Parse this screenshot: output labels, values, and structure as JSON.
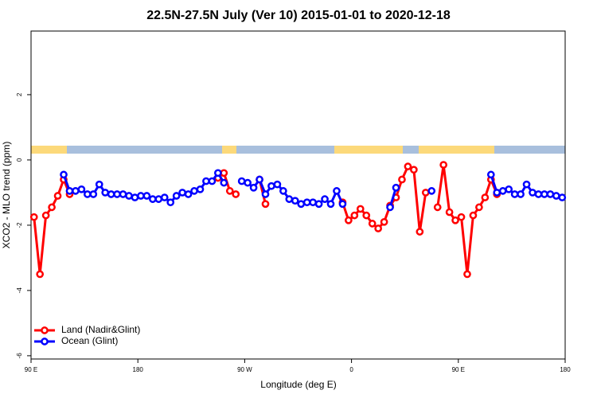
{
  "chart_data": {
    "type": "line",
    "title": "22.5N-27.5N July (Ver 10)   2015-01-01 to 2020-12-18",
    "x_label": "Longitude (deg E)",
    "y_label": "XCO2 - MLO trend (ppm)",
    "xlim": [
      90,
      540
    ],
    "ylim": [
      -6.1,
      3.95
    ],
    "xticks": [
      {
        "value": 90,
        "label": "90 E"
      },
      180,
      {
        "value": 270,
        "label": "90 W"
      },
      {
        "value": 360,
        "label": "0"
      },
      {
        "value": 450,
        "label": "90 E"
      },
      {
        "value": 540,
        "label": "180"
      }
    ],
    "yticks": [
      -6,
      -4,
      -2,
      0,
      2
    ],
    "legend": "bottom-left",
    "x": [
      92.5,
      97.5,
      102.5,
      107.5,
      112.5,
      117.5,
      122.5,
      127.5,
      132.5,
      137.5,
      142.5,
      147.5,
      152.5,
      157.5,
      162.5,
      167.5,
      172.5,
      177.5,
      182.5,
      187.5,
      192.5,
      197.5,
      202.5,
      207.5,
      212.5,
      217.5,
      222.5,
      227.5,
      232.5,
      237.5,
      242.5,
      247.5,
      252.5,
      257.5,
      262.5,
      267.5,
      272.5,
      277.5,
      282.5,
      287.5,
      292.5,
      297.5,
      302.5,
      307.5,
      312.5,
      317.5,
      322.5,
      327.5,
      332.5,
      337.5,
      342.5,
      347.5,
      352.5,
      357.5,
      362.5,
      367.5,
      372.5,
      377.5,
      382.5,
      387.5,
      392.5,
      397.5,
      402.5,
      407.5,
      412.5,
      417.5,
      422.5,
      427.5,
      432.5,
      437.5,
      442.5,
      447.5,
      452.5,
      457.5,
      462.5,
      467.5,
      472.5,
      477.5,
      482.5,
      487.5,
      492.5,
      497.5,
      502.5,
      507.5,
      512.5,
      517.5,
      522.5,
      527.5,
      532.5,
      537.5
    ],
    "series": [
      {
        "name": "Land (Nadir&Glint)",
        "color": "#ff0000",
        "values": [
          -1.75,
          -3.5,
          -1.7,
          -1.45,
          -1.1,
          -0.6,
          -1.05,
          null,
          null,
          null,
          null,
          null,
          null,
          null,
          null,
          null,
          null,
          null,
          null,
          null,
          null,
          null,
          null,
          null,
          null,
          null,
          null,
          null,
          null,
          null,
          null,
          -0.55,
          -0.4,
          -0.95,
          -1.05,
          null,
          null,
          null,
          -0.6,
          -1.35,
          null,
          null,
          null,
          null,
          null,
          null,
          null,
          null,
          null,
          null,
          null,
          null,
          -1.3,
          -1.85,
          -1.7,
          -1.5,
          -1.7,
          -1.95,
          -2.1,
          -1.9,
          -1.4,
          -1.15,
          -0.6,
          -0.2,
          -0.3,
          -2.2,
          -1.0,
          null,
          -1.45,
          -0.15,
          -1.6,
          -1.85,
          -1.75,
          -3.5,
          -1.7,
          -1.45,
          -1.15,
          -0.6,
          -1.05,
          null,
          null,
          null,
          null,
          null,
          null,
          null,
          null,
          null,
          null,
          null
        ]
      },
      {
        "name": "Ocean (Glint)",
        "color": "#0000ff",
        "values": [
          null,
          null,
          null,
          null,
          null,
          -0.45,
          -0.95,
          -0.95,
          -0.9,
          -1.05,
          -1.05,
          -0.75,
          -1.0,
          -1.05,
          -1.05,
          -1.05,
          -1.1,
          -1.15,
          -1.1,
          -1.1,
          -1.2,
          -1.2,
          -1.15,
          -1.3,
          -1.1,
          -1.0,
          -1.05,
          -0.95,
          -0.9,
          -0.65,
          -0.65,
          -0.4,
          -0.7,
          null,
          null,
          -0.65,
          -0.7,
          -0.85,
          -0.6,
          -1.05,
          -0.8,
          -0.75,
          -0.95,
          -1.2,
          -1.25,
          -1.35,
          -1.3,
          -1.3,
          -1.35,
          -1.2,
          -1.35,
          -0.95,
          -1.35,
          null,
          null,
          null,
          null,
          null,
          null,
          null,
          -1.45,
          -0.85,
          null,
          null,
          null,
          null,
          null,
          -0.95,
          null,
          null,
          null,
          null,
          null,
          null,
          null,
          null,
          null,
          -0.45,
          -1.0,
          -0.95,
          -0.9,
          -1.05,
          -1.05,
          -0.75,
          -1.0,
          -1.05,
          -1.05,
          -1.05,
          -1.1,
          -1.15
        ]
      }
    ]
  }
}
